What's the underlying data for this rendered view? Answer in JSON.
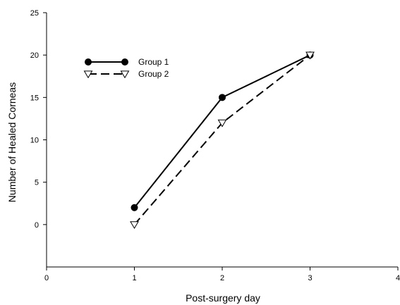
{
  "chart_data": {
    "type": "line",
    "title": "",
    "xlabel": "Post-surgery day",
    "ylabel": "Number of Healed Corneas",
    "xlim": [
      0,
      4
    ],
    "ylim": [
      -5,
      25
    ],
    "xticks": [
      0,
      1,
      2,
      3,
      4
    ],
    "yticks": [
      0,
      5,
      10,
      15,
      20,
      25
    ],
    "x": [
      1,
      2,
      3
    ],
    "series": [
      {
        "name": "Group 1",
        "values": [
          2,
          15,
          20
        ],
        "line_style": "solid",
        "marker": "filled-circle",
        "color": "#000000"
      },
      {
        "name": "Group 2",
        "values": [
          0,
          12,
          20
        ],
        "line_style": "dashed",
        "marker": "open-triangle-down",
        "color": "#000000"
      }
    ],
    "grid": false,
    "legend_position": "top-left"
  }
}
